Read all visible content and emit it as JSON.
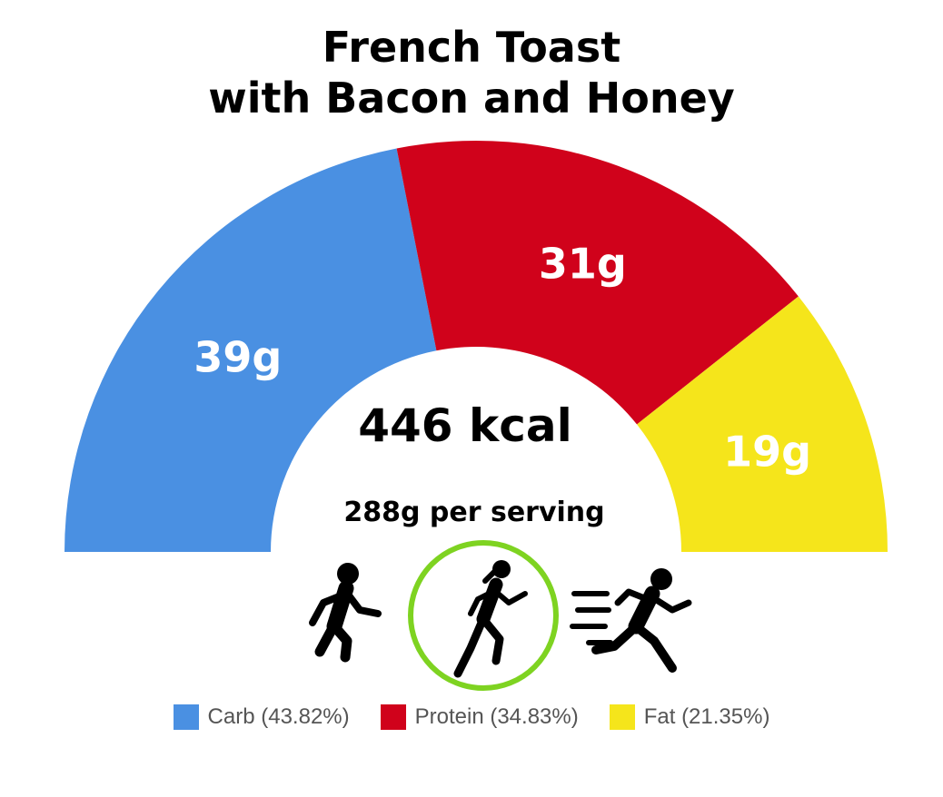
{
  "title_line1": "French Toast",
  "title_line2": "with Bacon and Honey",
  "center": {
    "calories": "446 kcal",
    "serving": "288g per serving"
  },
  "chart_data": {
    "type": "pie",
    "variant": "semicircle-donut",
    "title": "French Toast with Bacon and Honey",
    "series": [
      {
        "name": "Carb",
        "value": 39,
        "unit": "g",
        "label": "39g",
        "percent": 43.82,
        "legend": "Carb (43.82%)",
        "color": "#4a90e2"
      },
      {
        "name": "Protein",
        "value": 31,
        "unit": "g",
        "label": "31g",
        "percent": 34.83,
        "legend": "Protein (34.83%)",
        "color": "#d0021b"
      },
      {
        "name": "Fat",
        "value": 19,
        "unit": "g",
        "label": "19g",
        "percent": 21.35,
        "legend": "Fat (21.35%)",
        "color": "#f5e51b"
      }
    ],
    "legend_position": "bottom-center"
  },
  "activity": {
    "icons": [
      "walking-person-icon",
      "running-woman-icon",
      "sprinting-person-icon"
    ],
    "selected_index": 1,
    "ring_color": "#7ed321"
  }
}
